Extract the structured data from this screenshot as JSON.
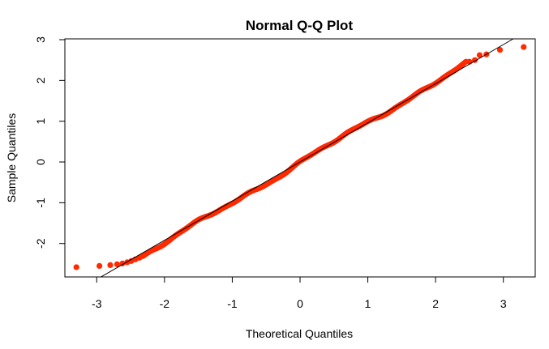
{
  "chart_data": {
    "type": "scatter",
    "title": "Normal Q-Q Plot",
    "xlabel": "Theoretical Quantiles",
    "ylabel": "Sample Quantiles",
    "xlim": [
      -3.47,
      3.47
    ],
    "ylim": [
      -2.82,
      3.02
    ],
    "xticks": [
      -3,
      -2,
      -1,
      0,
      1,
      2,
      3
    ],
    "yticks": [
      -2,
      -1,
      0,
      1,
      2,
      3
    ],
    "xtick_labels": [
      "-3",
      "-2",
      "-1",
      "0",
      "1",
      "2",
      "3"
    ],
    "ytick_labels": [
      "-2",
      "-1",
      "0",
      "1",
      "2",
      "3"
    ],
    "grid": false,
    "point_color": "#ff2a00",
    "line_color": "#000000",
    "reference_line": {
      "intercept": 0.0,
      "slope": 0.96
    },
    "series": [
      {
        "x": [
          -3.3,
          -2.96,
          -2.8,
          -2.7,
          -2.62,
          -2.55,
          -2.49,
          -2.43,
          -2.37,
          -2.32,
          2.5,
          2.58,
          2.65,
          2.75,
          2.95,
          3.3
        ],
        "y": [
          -2.58,
          -2.55,
          -2.53,
          -2.51,
          -2.49,
          -2.46,
          -2.43,
          -2.39,
          -2.35,
          -2.31,
          2.46,
          2.5,
          2.62,
          2.64,
          2.75,
          2.82
        ]
      }
    ],
    "dense_band": {
      "n": 1000,
      "from": -2.3,
      "to": 2.45,
      "y_at_from": -2.28,
      "y_at_to": 2.4
    }
  }
}
